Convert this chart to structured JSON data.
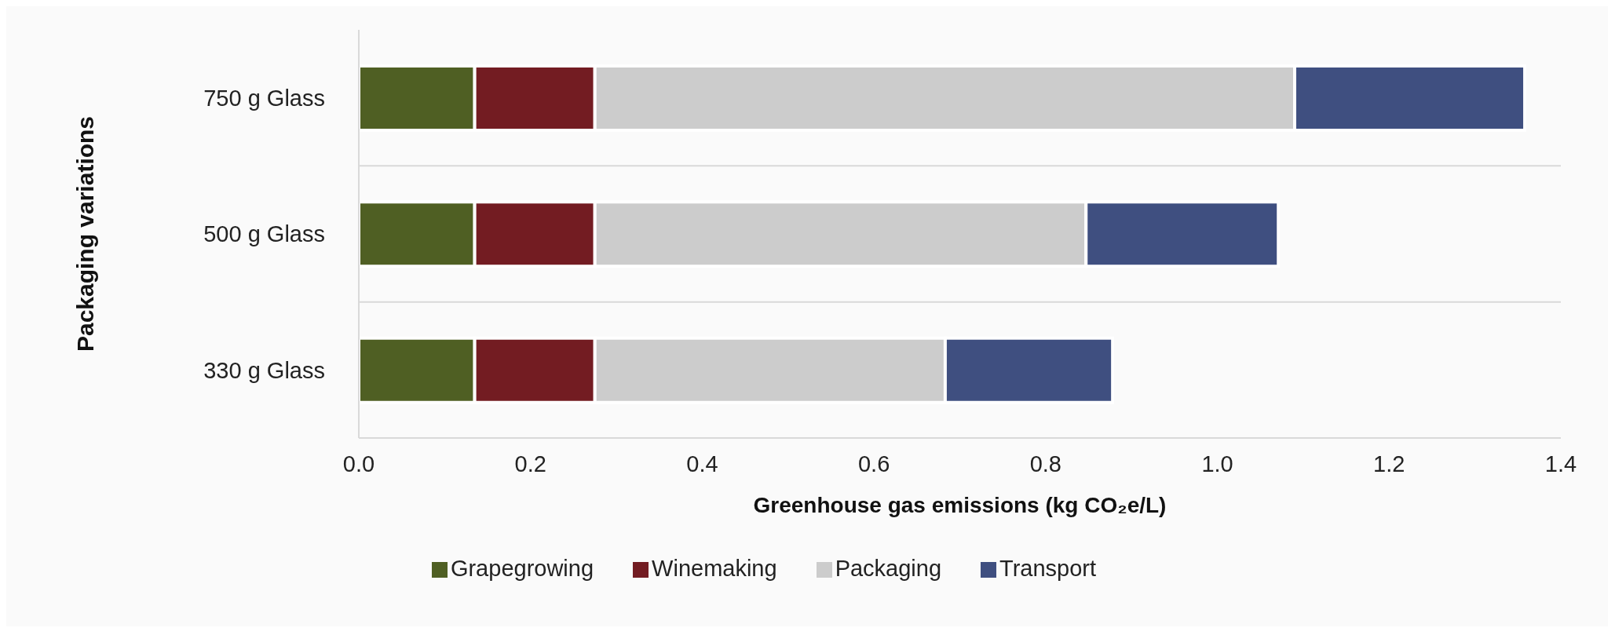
{
  "chart_data": {
    "type": "bar",
    "orientation": "horizontal",
    "stacked": true,
    "xlabel": "Greenhouse gas emissions (kg CO₂e/L)",
    "ylabel": "Packaging variations",
    "categories": [
      "750 g Glass",
      "500 g Glass",
      "330 g Glass"
    ],
    "series": [
      {
        "name": "Grapegrowing",
        "color": "#4f5f23",
        "values": [
          0.135,
          0.135,
          0.135
        ]
      },
      {
        "name": "Winemaking",
        "color": "#731c22",
        "values": [
          0.14,
          0.14,
          0.14
        ]
      },
      {
        "name": "Packaging",
        "color": "#cccccc",
        "values": [
          0.815,
          0.572,
          0.408
        ]
      },
      {
        "name": "Transport",
        "color": "#3f4f80",
        "values": [
          0.268,
          0.224,
          0.195
        ]
      }
    ],
    "xlim": [
      0,
      1.4
    ],
    "xticks": [
      {
        "value": 0,
        "label": "0.0"
      },
      0.2,
      0.4,
      0.6,
      0.8,
      {
        "value": 1,
        "label": "1.0"
      },
      1.2,
      1.4
    ],
    "grid": "y",
    "legend": "bottom"
  }
}
